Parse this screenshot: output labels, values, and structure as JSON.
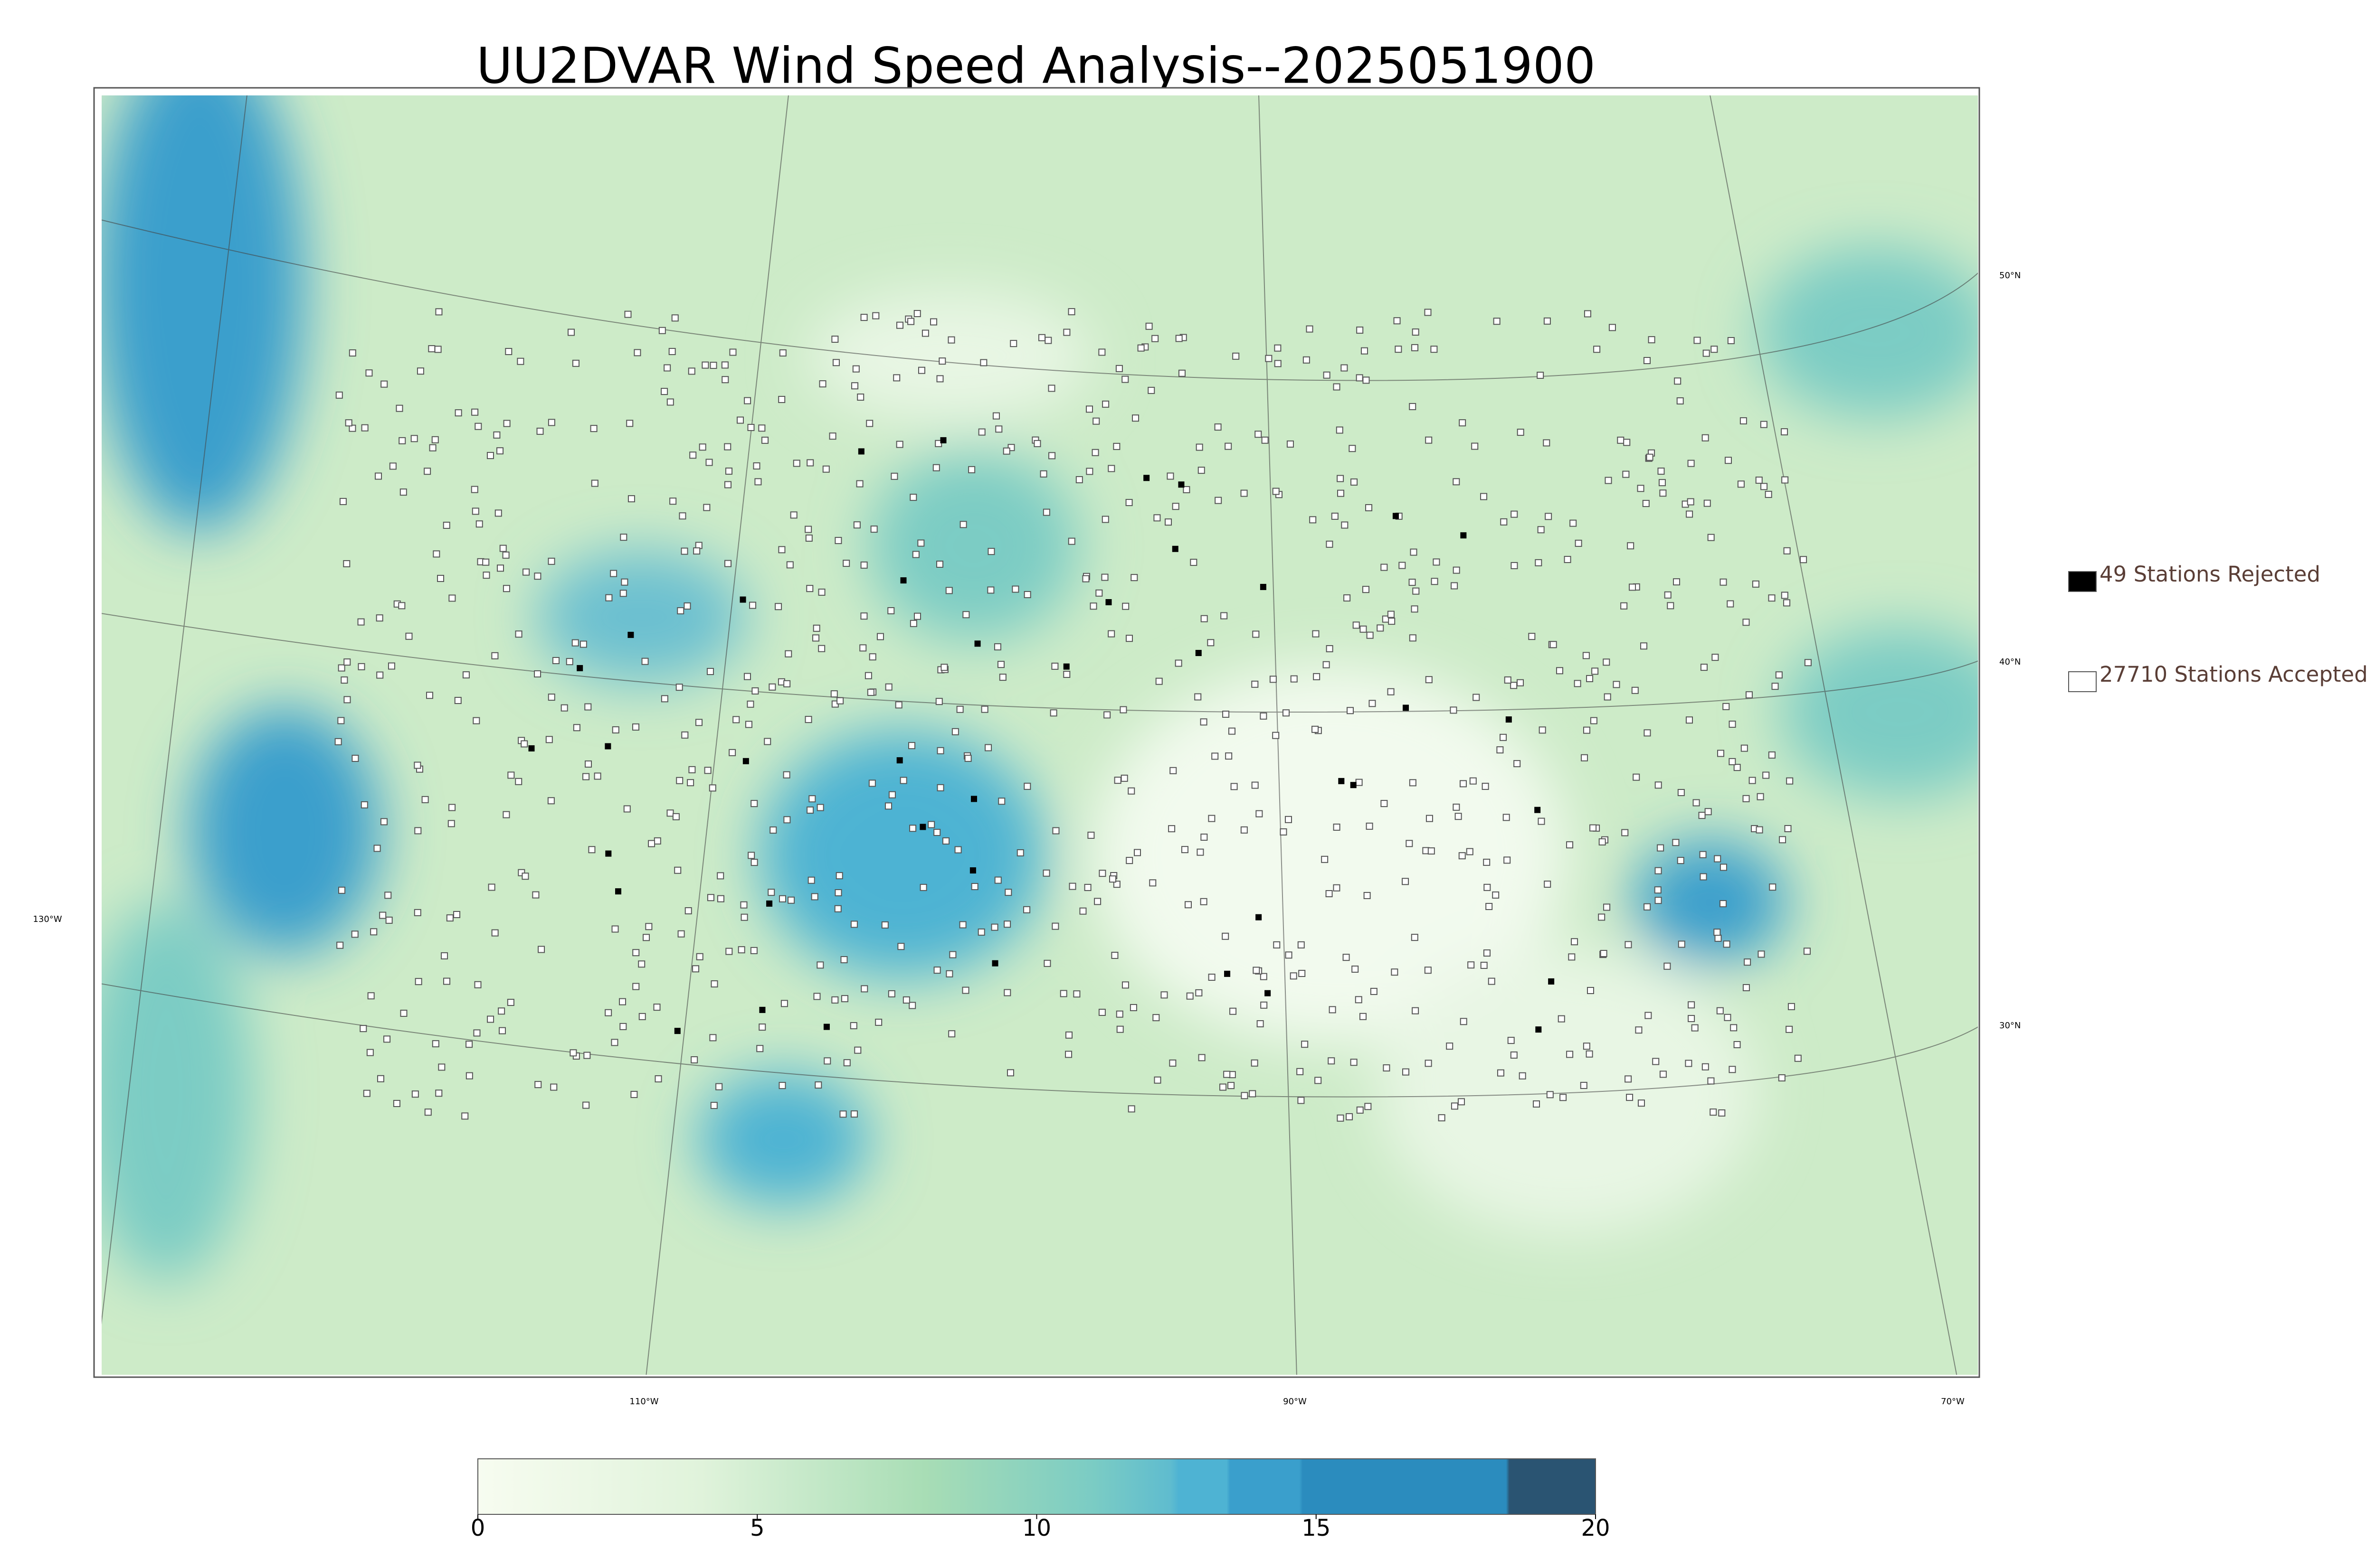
{
  "title": "UU2DVAR Wind Speed Analysis--2025051900",
  "legend": [
    {
      "label": "49 Stations Rejected",
      "color": "#000000"
    },
    {
      "label": "27710 Stations Accepted",
      "color": "#ffffff"
    }
  ],
  "lat_labels": [
    "50°N",
    "40°N",
    "30°N"
  ],
  "lon_labels": [
    "130°W",
    "110°W",
    "90°W",
    "70°W"
  ],
  "colorbar": {
    "lim": [
      0,
      20
    ],
    "ticks": [
      0,
      5,
      10,
      15,
      20
    ]
  }
}
